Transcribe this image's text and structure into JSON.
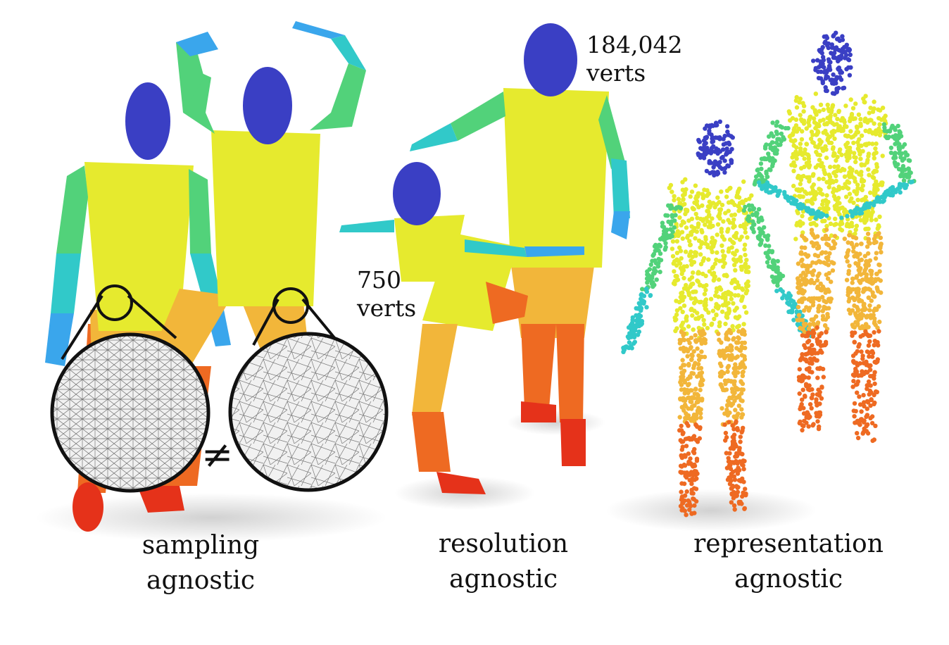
{
  "figure": {
    "panels": [
      {
        "id": "sampling",
        "caption_line1": "sampling",
        "caption_line2": "agnostic"
      },
      {
        "id": "resolution",
        "caption_line1": "resolution",
        "caption_line2": "agnostic"
      },
      {
        "id": "representation",
        "caption_line1": "representation",
        "caption_line2": "agnostic"
      }
    ],
    "high_res_count": {
      "number": "184,042",
      "unit": "verts"
    },
    "low_res_count": {
      "number": "750",
      "unit": "verts"
    },
    "inequality_symbol": "≠",
    "segment_colors": {
      "head": "#3a3fc4",
      "torso": "#e6ea2e",
      "upper_arm": "#52d27a",
      "forearm": "#31c9c9",
      "hand": "#3aa6ec",
      "thigh": "#f2b63a",
      "shin": "#ee6a22",
      "foot": "#e5321a"
    }
  }
}
